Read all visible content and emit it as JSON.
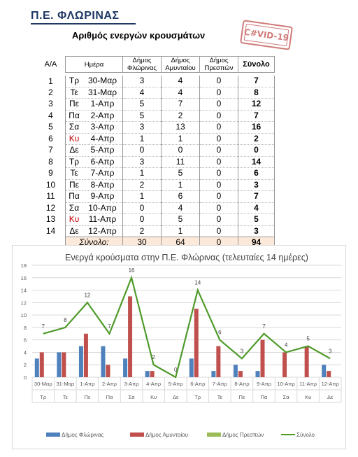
{
  "header": {
    "title": "Π.Ε. ΦΛΩΡΙΝΑΣ",
    "subtitle": "Αριθμός ενεργών κρουσμάτων",
    "stamp": "C#VID-19"
  },
  "table": {
    "columns": {
      "aa": "Α/Α",
      "day": "Ημέρα",
      "florina": "Δήμος Φλώρινας",
      "amyntaio": "Δήμος Αμυνταίου",
      "prespes": "Δήμος Πρεσπών",
      "total": "Σύνολο"
    },
    "rows": [
      {
        "aa": "1",
        "dow": "Τρ",
        "date": "30-Μαρ",
        "f": "3",
        "a": "4",
        "p": "0",
        "t": "7"
      },
      {
        "aa": "2",
        "dow": "Τε",
        "date": "31-Μαρ",
        "f": "4",
        "a": "4",
        "p": "0",
        "t": "8"
      },
      {
        "aa": "3",
        "dow": "Πε",
        "date": "1-Απρ",
        "f": "5",
        "a": "7",
        "p": "0",
        "t": "12"
      },
      {
        "aa": "4",
        "dow": "Πα",
        "date": "2-Απρ",
        "f": "5",
        "a": "2",
        "p": "0",
        "t": "7"
      },
      {
        "aa": "5",
        "dow": "Σα",
        "date": "3-Απρ",
        "f": "3",
        "a": "13",
        "p": "0",
        "t": "16"
      },
      {
        "aa": "6",
        "dow": "Κυ",
        "date": "4-Απρ",
        "f": "1",
        "a": "1",
        "p": "0",
        "t": "2",
        "sunday": true
      },
      {
        "aa": "7",
        "dow": "Δε",
        "date": "5-Απρ",
        "f": "0",
        "a": "0",
        "p": "0",
        "t": "0"
      },
      {
        "aa": "8",
        "dow": "Τρ",
        "date": "6-Απρ",
        "f": "3",
        "a": "11",
        "p": "0",
        "t": "14"
      },
      {
        "aa": "9",
        "dow": "Τε",
        "date": "7-Απρ",
        "f": "1",
        "a": "5",
        "p": "0",
        "t": "6"
      },
      {
        "aa": "10",
        "dow": "Πε",
        "date": "8-Απρ",
        "f": "2",
        "a": "1",
        "p": "0",
        "t": "3"
      },
      {
        "aa": "11",
        "dow": "Πα",
        "date": "9-Απρ",
        "f": "1",
        "a": "6",
        "p": "0",
        "t": "7"
      },
      {
        "aa": "12",
        "dow": "Σα",
        "date": "10-Απρ",
        "f": "0",
        "a": "4",
        "p": "0",
        "t": "4"
      },
      {
        "aa": "13",
        "dow": "Κυ",
        "date": "11-Απρ",
        "f": "0",
        "a": "5",
        "p": "0",
        "t": "5",
        "sunday": true
      },
      {
        "aa": "14",
        "dow": "Δε",
        "date": "12-Απρ",
        "f": "2",
        "a": "1",
        "p": "0",
        "t": "3"
      }
    ],
    "sum": {
      "label": "Σύνολο:",
      "f": "30",
      "a": "64",
      "p": "0",
      "t": "94"
    }
  },
  "colors": {
    "florina": "#4f81bd",
    "amyntaio": "#c0504d",
    "prespes": "#9bbb59",
    "total": "#4e9a2a",
    "sunday": "#c00000",
    "title_blue": "#1f3864"
  },
  "chart_data": {
    "type": "bar",
    "title": "Ενεργά κρούσματα στην Π.Ε. Φλώρινας (τελευταίες 14 ημέρες)",
    "categories": [
      "30-Μαρ",
      "31-Μαρ",
      "1-Απρ",
      "2-Απρ",
      "3-Απρ",
      "4-Απρ",
      "5-Απρ",
      "6-Απρ",
      "7-Απρ",
      "8-Απρ",
      "9-Απρ",
      "10-Απρ",
      "11-Απρ",
      "12-Απρ"
    ],
    "categories2": [
      "Τρ",
      "Τε",
      "Πε",
      "Πα",
      "Σα",
      "Κυ",
      "Δε",
      "Τρ",
      "Τε",
      "Πε",
      "Πα",
      "Σα",
      "Κυ",
      "Δε"
    ],
    "series": [
      {
        "name": "Δήμος Φλώρινας",
        "kind": "bar",
        "values": [
          3,
          4,
          5,
          5,
          3,
          1,
          0,
          3,
          1,
          2,
          1,
          0,
          0,
          2
        ]
      },
      {
        "name": "Δήμος Αμυνταίου",
        "kind": "bar",
        "values": [
          4,
          4,
          7,
          2,
          13,
          1,
          0,
          11,
          5,
          1,
          6,
          4,
          5,
          1
        ]
      },
      {
        "name": "Δήμος Πρεσπών",
        "kind": "bar",
        "values": [
          0,
          0,
          0,
          0,
          0,
          0,
          0,
          0,
          0,
          0,
          0,
          0,
          0,
          0
        ]
      },
      {
        "name": "Σύνολο",
        "kind": "line",
        "values": [
          7,
          8,
          12,
          7,
          16,
          2,
          0,
          14,
          6,
          3,
          7,
          4,
          5,
          3
        ]
      }
    ],
    "ylim": [
      0,
      18
    ],
    "yticks": [
      0,
      2,
      4,
      6,
      8,
      10,
      12,
      14,
      16,
      18
    ],
    "grid": true,
    "legend": "bottom"
  }
}
